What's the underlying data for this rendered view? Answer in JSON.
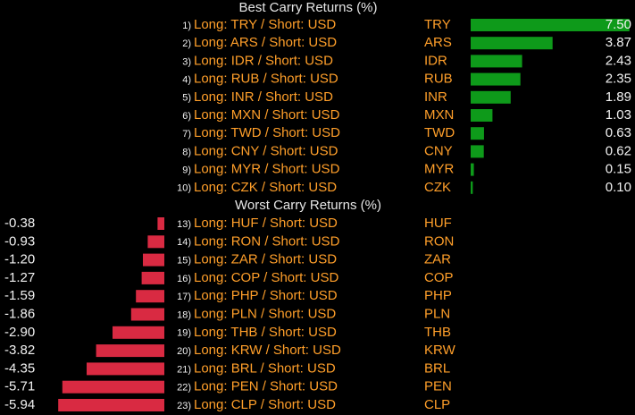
{
  "chart_data": [
    {
      "type": "bar",
      "title": "Best Carry Returns (%)",
      "color": "#0e9a1a",
      "ranks": [
        "1)",
        "2)",
        "3)",
        "4)",
        "5)",
        "6)",
        "7)",
        "8)",
        "9)",
        "10)"
      ],
      "labels": [
        "Long: TRY / Short: USD",
        "Long: ARS / Short: USD",
        "Long: IDR / Short: USD",
        "Long: RUB / Short: USD",
        "Long: INR / Short: USD",
        "Long: MXN / Short: USD",
        "Long: TWD / Short: USD",
        "Long: CNY / Short: USD",
        "Long: MYR / Short: USD",
        "Long: CZK / Short: USD"
      ],
      "categories": [
        "TRY",
        "ARS",
        "IDR",
        "RUB",
        "INR",
        "MXN",
        "TWD",
        "CNY",
        "MYR",
        "CZK"
      ],
      "values": [
        7.5,
        3.87,
        2.43,
        2.35,
        1.89,
        1.03,
        0.63,
        0.62,
        0.15,
        0.1
      ],
      "value_labels": [
        "7.50",
        "3.87",
        "2.43",
        "2.35",
        "1.89",
        "1.03",
        "0.63",
        "0.62",
        "0.15",
        "0.10"
      ]
    },
    {
      "type": "bar",
      "title": "Worst Carry Returns (%)",
      "color": "#d92a42",
      "ranks": [
        "13)",
        "14)",
        "15)",
        "16)",
        "17)",
        "18)",
        "19)",
        "20)",
        "21)",
        "22)",
        "23)"
      ],
      "labels": [
        "Long: HUF / Short: USD",
        "Long: RON / Short: USD",
        "Long: ZAR / Short: USD",
        "Long: COP / Short: USD",
        "Long: PHP / Short: USD",
        "Long: PLN / Short: USD",
        "Long: THB / Short: USD",
        "Long: KRW / Short: USD",
        "Long: BRL / Short: USD",
        "Long: PEN / Short: USD",
        "Long: CLP / Short: USD"
      ],
      "categories": [
        "HUF",
        "RON",
        "ZAR",
        "COP",
        "PHP",
        "PLN",
        "THB",
        "KRW",
        "BRL",
        "PEN",
        "CLP"
      ],
      "values": [
        -0.38,
        -0.93,
        -1.2,
        -1.27,
        -1.59,
        -1.86,
        -2.9,
        -3.82,
        -4.35,
        -5.71,
        -5.94
      ],
      "value_labels": [
        "-0.38",
        "-0.93",
        "-1.20",
        "-1.27",
        "-1.59",
        "-1.86",
        "-2.90",
        "-3.82",
        "-4.35",
        "-5.71",
        "-5.94"
      ]
    }
  ]
}
